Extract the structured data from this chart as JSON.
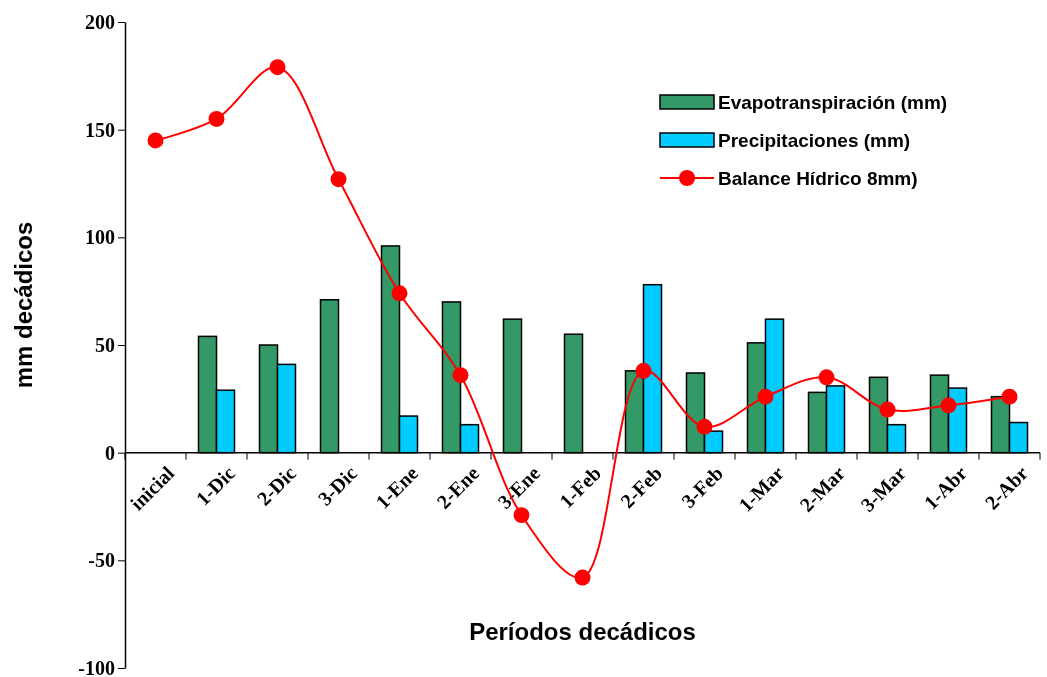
{
  "chart_data": {
    "type": "bar",
    "xlabel": "Períodos decádicos",
    "ylabel": "mm decádicos",
    "categories": [
      "inicial",
      "1-Dic",
      "2-Dic",
      "3-Dic",
      "1-Ene",
      "2-Ene",
      "3-Ene",
      "1-Feb",
      "2-Feb",
      "3-Feb",
      "1-Mar",
      "2-Mar",
      "3-Mar",
      "1-Abr",
      "2-Abr"
    ],
    "series": [
      {
        "name": "Evapotranspiración (mm)",
        "color": "#339966",
        "values": [
          null,
          54,
          50,
          71,
          96,
          70,
          62,
          55,
          38,
          37,
          51,
          28,
          35,
          36,
          26
        ]
      },
      {
        "name": "Precipitaciones (mm)",
        "color": "#00ccff",
        "values": [
          null,
          29,
          41,
          null,
          17,
          13,
          null,
          null,
          78,
          10,
          62,
          31,
          13,
          30,
          14
        ]
      },
      {
        "name": "Balance Hídrico 8mm)",
        "type": "line",
        "color": "#ff0000",
        "marker": "circle",
        "values": [
          145,
          155,
          179,
          127,
          74,
          36,
          -29,
          -58,
          38,
          12,
          26,
          35,
          20,
          22,
          26
        ]
      }
    ],
    "ylim": [
      -100,
      200
    ],
    "yticks": [
      -100,
      -50,
      0,
      50,
      100,
      150,
      200
    ],
    "grid": false,
    "legend": "top right"
  }
}
